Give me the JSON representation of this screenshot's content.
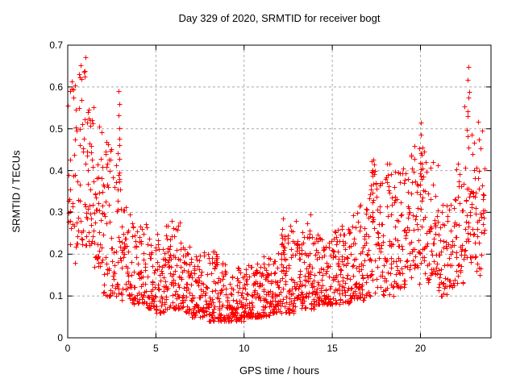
{
  "chart_data": {
    "type": "scatter",
    "title": "Day 329 of 2020, SRMTID for receiver bogt",
    "xlabel": "GPS time / hours",
    "ylabel": "SRMTID / TECUs",
    "xlim": [
      0,
      24
    ],
    "ylim": [
      0,
      0.7
    ],
    "xticks": [
      0,
      5,
      10,
      15,
      20
    ],
    "xticklabels": [
      "0",
      "5",
      "10",
      "15",
      "20"
    ],
    "yticks": [
      0,
      0.1,
      0.2,
      0.3,
      0.4,
      0.5,
      0.6,
      0.7
    ],
    "yticklabels": [
      "0",
      "0.1",
      "0.2",
      "0.3",
      "0.4",
      "0.5",
      "0.6",
      "0.7"
    ],
    "grid": true,
    "legend": "none",
    "marker": "plus",
    "marker_color": "#ff0000",
    "grid_color": "#a9a9a9",
    "axis_color": "#000000",
    "distribution_bins_format": [
      "t_start_hours",
      "value_min",
      "value_max",
      "point_count",
      "skew_exponent",
      "bin_width_hours_optional"
    ],
    "distribution_bins": [
      [
        0.0,
        0.18,
        0.62,
        30,
        1.2
      ],
      [
        0.5,
        0.22,
        0.67,
        34,
        1.25
      ],
      [
        1.0,
        0.22,
        0.58,
        40,
        1.2
      ],
      [
        1.5,
        0.17,
        0.55,
        42,
        1.25
      ],
      [
        2.0,
        0.1,
        0.5,
        40,
        1.5
      ],
      [
        2.5,
        0.1,
        0.45,
        36,
        1.6
      ],
      [
        3.0,
        0.09,
        0.33,
        38,
        1.6
      ],
      [
        3.5,
        0.08,
        0.28,
        40,
        1.7
      ],
      [
        4.0,
        0.08,
        0.3,
        40,
        1.8
      ],
      [
        4.5,
        0.07,
        0.24,
        40,
        1.8
      ],
      [
        5.0,
        0.06,
        0.25,
        42,
        1.8
      ],
      [
        5.5,
        0.07,
        0.28,
        44,
        1.7
      ],
      [
        6.0,
        0.07,
        0.28,
        44,
        1.8
      ],
      [
        6.5,
        0.06,
        0.22,
        42,
        1.9
      ],
      [
        7.0,
        0.05,
        0.2,
        44,
        1.8
      ],
      [
        7.5,
        0.05,
        0.21,
        44,
        1.8
      ],
      [
        8.0,
        0.04,
        0.21,
        46,
        1.9
      ],
      [
        8.5,
        0.04,
        0.18,
        46,
        1.9
      ],
      [
        9.0,
        0.04,
        0.16,
        46,
        1.8
      ],
      [
        9.5,
        0.04,
        0.17,
        46,
        1.8
      ],
      [
        10.0,
        0.05,
        0.18,
        46,
        1.8
      ],
      [
        10.5,
        0.05,
        0.18,
        46,
        1.8
      ],
      [
        11.0,
        0.05,
        0.2,
        46,
        1.7
      ],
      [
        11.5,
        0.06,
        0.22,
        46,
        1.7
      ],
      [
        12.0,
        0.06,
        0.25,
        46,
        1.6
      ],
      [
        12.5,
        0.06,
        0.28,
        46,
        1.6
      ],
      [
        13.0,
        0.07,
        0.26,
        46,
        1.6
      ],
      [
        13.5,
        0.07,
        0.3,
        46,
        1.6
      ],
      [
        14.0,
        0.08,
        0.25,
        46,
        1.6
      ],
      [
        14.5,
        0.08,
        0.24,
        46,
        1.6
      ],
      [
        15.0,
        0.08,
        0.26,
        44,
        1.6
      ],
      [
        15.5,
        0.08,
        0.28,
        44,
        1.6
      ],
      [
        16.0,
        0.09,
        0.3,
        42,
        1.5
      ],
      [
        16.5,
        0.09,
        0.35,
        40,
        1.5
      ],
      [
        17.0,
        0.1,
        0.43,
        40,
        1.5
      ],
      [
        17.5,
        0.1,
        0.38,
        38,
        1.5
      ],
      [
        18.0,
        0.1,
        0.42,
        38,
        1.5
      ],
      [
        18.5,
        0.12,
        0.4,
        38,
        1.4
      ],
      [
        19.0,
        0.12,
        0.44,
        36,
        1.4
      ],
      [
        19.5,
        0.13,
        0.47,
        36,
        1.4
      ],
      [
        20.0,
        0.13,
        0.5,
        36,
        1.4
      ],
      [
        20.5,
        0.15,
        0.42,
        36,
        1.4
      ],
      [
        21.0,
        0.1,
        0.33,
        34,
        1.5
      ],
      [
        21.5,
        0.12,
        0.35,
        34,
        1.5
      ],
      [
        22.0,
        0.13,
        0.42,
        34,
        1.4
      ],
      [
        22.5,
        0.18,
        0.58,
        36,
        1.3
      ],
      [
        23.0,
        0.15,
        0.52,
        34,
        1.3
      ],
      [
        23.5,
        0.22,
        0.45,
        12,
        1.2,
        0.15
      ]
    ],
    "streak_columns_format": [
      "t_hours",
      "value_min",
      "value_max",
      "point_count"
    ],
    "streak_columns": [
      [
        0.95,
        0.62,
        0.67,
        3
      ],
      [
        2.88,
        0.35,
        0.58,
        10
      ],
      [
        12.2,
        0.2,
        0.28,
        5
      ],
      [
        17.3,
        0.3,
        0.43,
        6
      ],
      [
        20.05,
        0.3,
        0.52,
        7
      ],
      [
        22.7,
        0.45,
        0.64,
        9
      ]
    ]
  }
}
